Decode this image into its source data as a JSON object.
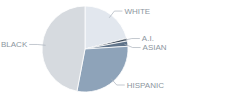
{
  "chart_data": {
    "type": "pie",
    "categories": [
      "WHITE",
      "A.I.",
      "ASIAN",
      "HISPANIC",
      "BLACK"
    ],
    "values": [
      21,
      1,
      2,
      29,
      47
    ],
    "colors": [
      "#e2e7ee",
      "#3e4b5a",
      "#5f7389",
      "#8ea3b9",
      "#d6dadf"
    ]
  }
}
